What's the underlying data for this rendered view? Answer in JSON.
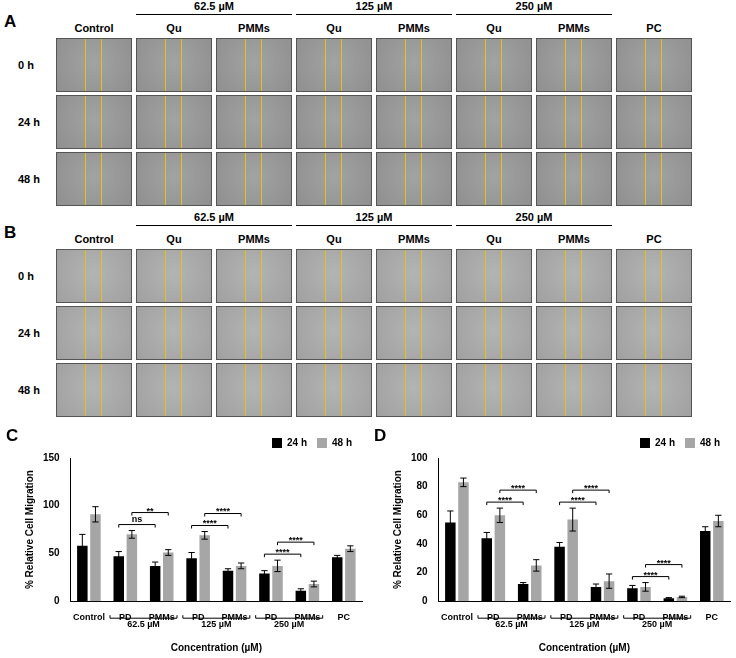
{
  "image_panels": [
    {
      "panel_label": "A",
      "column_headers": [
        "Control",
        "Qu",
        "PMMs",
        "Qu",
        "PMMs",
        "Qu",
        "PMMs",
        "PC"
      ],
      "column_groups": [
        {
          "label": "62.5 µM",
          "columns": [
            1,
            2
          ]
        },
        {
          "label": "125 µM",
          "columns": [
            3,
            4
          ]
        },
        {
          "label": "250 µM",
          "columns": [
            5,
            6
          ]
        }
      ],
      "row_labels": [
        "0 h",
        "24 h",
        "48 h"
      ]
    },
    {
      "panel_label": "B",
      "column_headers": [
        "Control",
        "Qu",
        "PMMs",
        "Qu",
        "PMMs",
        "Qu",
        "PMMs",
        "PC"
      ],
      "column_groups": [
        {
          "label": "62.5 µM",
          "columns": [
            1,
            2
          ]
        },
        {
          "label": "125 µM",
          "columns": [
            3,
            4
          ]
        },
        {
          "label": "250 µM",
          "columns": [
            5,
            6
          ]
        }
      ],
      "row_labels": [
        "0 h",
        "24 h",
        "48 h"
      ]
    }
  ],
  "chart_data": [
    {
      "panel_label": "C",
      "type": "bar",
      "categories": [
        "Control",
        "PD",
        "PMMs",
        "PD",
        "PMMs",
        "PD",
        "PMMs",
        "PC"
      ],
      "category_groups": [
        {
          "label": "62.5 µM",
          "categories": [
            1,
            2
          ]
        },
        {
          "label": "125 µM",
          "categories": [
            3,
            4
          ]
        },
        {
          "label": "250 µM",
          "categories": [
            5,
            6
          ]
        }
      ],
      "x_label": "Concentration (µM)",
      "y_label": "% Relative Cell Migration",
      "series": [
        {
          "name": "24 h",
          "color": "#000000",
          "values": [
            58,
            47,
            37,
            45,
            32,
            29,
            11,
            46
          ],
          "errors": [
            12,
            5,
            4,
            6,
            2,
            3,
            2,
            2
          ]
        },
        {
          "name": "48 h",
          "color": "#a6a6a6",
          "values": [
            91,
            70,
            51,
            69,
            37,
            37,
            18,
            55
          ],
          "errors": [
            8,
            4,
            3,
            4,
            3,
            6,
            3,
            3
          ]
        }
      ],
      "comparisons": [
        {
          "categories": [
            1,
            2
          ],
          "series": 0,
          "label": "ns"
        },
        {
          "categories": [
            1,
            2
          ],
          "series": 1,
          "label": "**"
        },
        {
          "categories": [
            3,
            4
          ],
          "series": 0,
          "label": "****"
        },
        {
          "categories": [
            3,
            4
          ],
          "series": 1,
          "label": "****"
        },
        {
          "categories": [
            5,
            6
          ],
          "series": 0,
          "label": "****"
        },
        {
          "categories": [
            5,
            6
          ],
          "series": 1,
          "label": "****"
        }
      ],
      "ylim": [
        0,
        150
      ],
      "yticks": [
        0,
        50,
        100,
        150
      ],
      "grid": false,
      "legend": "upper right"
    },
    {
      "panel_label": "D",
      "type": "bar",
      "categories": [
        "Control",
        "PD",
        "PMMs",
        "PD",
        "PMMs",
        "PD",
        "PMMs",
        "PC"
      ],
      "category_groups": [
        {
          "label": "62.5 µM",
          "categories": [
            1,
            2
          ]
        },
        {
          "label": "125 µM",
          "categories": [
            3,
            4
          ]
        },
        {
          "label": "250 µM",
          "categories": [
            5,
            6
          ]
        }
      ],
      "x_label": "Concentration (µM)",
      "y_label": "% Relative Cell Migration",
      "series": [
        {
          "name": "24 h",
          "color": "#000000",
          "values": [
            55,
            44,
            12,
            38,
            10,
            9,
            2,
            49
          ],
          "errors": [
            8,
            4,
            1,
            3,
            2,
            2,
            0.5,
            3
          ]
        },
        {
          "name": "48 h",
          "color": "#a6a6a6",
          "values": [
            83,
            60,
            25,
            57,
            14,
            10,
            3,
            56
          ],
          "errors": [
            3,
            5,
            4,
            8,
            5,
            3,
            0.5,
            4
          ]
        }
      ],
      "comparisons": [
        {
          "categories": [
            1,
            2
          ],
          "series": 0,
          "label": "****"
        },
        {
          "categories": [
            1,
            2
          ],
          "series": 1,
          "label": "****"
        },
        {
          "categories": [
            3,
            4
          ],
          "series": 0,
          "label": "****"
        },
        {
          "categories": [
            3,
            4
          ],
          "series": 1,
          "label": "****"
        },
        {
          "categories": [
            5,
            6
          ],
          "series": 0,
          "label": "****"
        },
        {
          "categories": [
            5,
            6
          ],
          "series": 1,
          "label": "****"
        }
      ],
      "ylim": [
        0,
        100
      ],
      "yticks": [
        0,
        20,
        40,
        60,
        80,
        100
      ],
      "grid": false,
      "legend": "upper right"
    }
  ]
}
